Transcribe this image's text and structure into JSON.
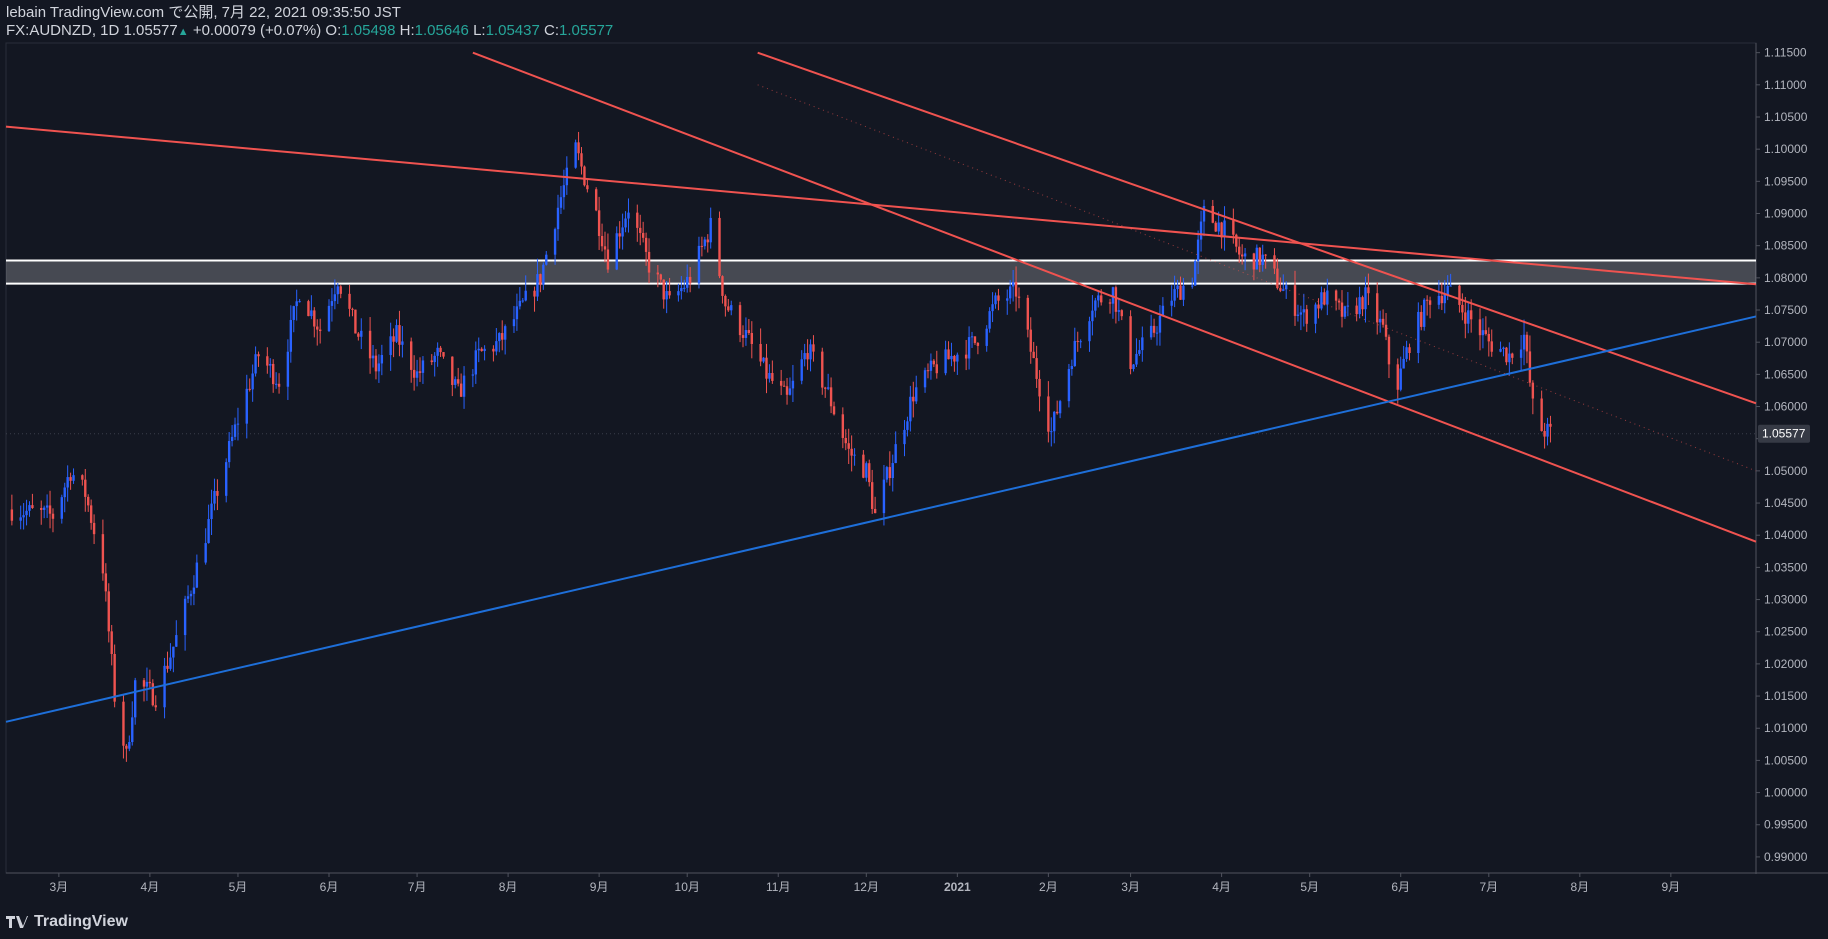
{
  "header": {
    "title": "lebain TradingView.com で公開, 7月 22, 2021 09:35:50 JST",
    "symbol": "FX:AUDNZD, 1D",
    "last": "1.05577",
    "change": "+0.00079 (+0.07%)",
    "o_label": "O:",
    "o": "1.05498",
    "h_label": "H:",
    "h": "1.05646",
    "l_label": "L:",
    "l": "1.05437",
    "c_label": "C:",
    "c": "1.05577"
  },
  "footer": {
    "brand": "TradingView"
  },
  "colors": {
    "background": "#131722",
    "up": "#2962ff",
    "down": "#ef5350",
    "trend_red": "#f05350",
    "trend_blue": "#1e6fd9",
    "zone": "#ffffff"
  },
  "chart_data": {
    "type": "candlestick",
    "symbol": "FX:AUDNZD",
    "interval": "1D",
    "ylim": [
      0.9875,
      1.1165
    ],
    "y_ticks": [
      "1.11500",
      "1.11000",
      "1.10500",
      "1.10000",
      "1.09500",
      "1.09000",
      "1.08500",
      "1.08000",
      "1.07500",
      "1.07000",
      "1.06500",
      "1.06000",
      "1.05500",
      "1.05000",
      "1.04500",
      "1.04000",
      "1.03500",
      "1.03000",
      "1.02500",
      "1.02000",
      "1.01500",
      "1.01000",
      "1.00500",
      "1.00000",
      "0.99500",
      "0.99000"
    ],
    "x_ticks": [
      {
        "label": "3月",
        "date": "2020-03-01"
      },
      {
        "label": "4月",
        "date": "2020-04-01"
      },
      {
        "label": "5月",
        "date": "2020-05-01"
      },
      {
        "label": "6月",
        "date": "2020-06-01"
      },
      {
        "label": "7月",
        "date": "2020-07-01"
      },
      {
        "label": "8月",
        "date": "2020-08-01"
      },
      {
        "label": "9月",
        "date": "2020-09-01"
      },
      {
        "label": "10月",
        "date": "2020-10-01"
      },
      {
        "label": "11月",
        "date": "2020-11-01"
      },
      {
        "label": "12月",
        "date": "2020-12-01"
      },
      {
        "label": "2021",
        "date": "2021-01-01"
      },
      {
        "label": "2月",
        "date": "2021-02-01"
      },
      {
        "label": "3月",
        "date": "2021-03-01"
      },
      {
        "label": "4月",
        "date": "2021-04-01"
      },
      {
        "label": "5月",
        "date": "2021-05-01"
      },
      {
        "label": "6月",
        "date": "2021-06-01"
      },
      {
        "label": "7月",
        "date": "2021-07-01"
      },
      {
        "label": "8月",
        "date": "2021-08-01"
      },
      {
        "label": "9月",
        "date": "2021-09-01"
      }
    ],
    "price_path": [
      [
        "2020-02-14",
        1.044
      ],
      [
        "2020-02-28",
        1.043
      ],
      [
        "2020-03-05",
        1.05
      ],
      [
        "2020-03-10",
        1.0465
      ],
      [
        "2020-03-16",
        1.035
      ],
      [
        "2020-03-20",
        1.015
      ],
      [
        "2020-03-24",
        1.0055
      ],
      [
        "2020-03-27",
        1.017
      ],
      [
        "2020-04-03",
        1.015
      ],
      [
        "2020-04-10",
        1.024
      ],
      [
        "2020-04-17",
        1.035
      ],
      [
        "2020-04-24",
        1.047
      ],
      [
        "2020-05-01",
        1.058
      ],
      [
        "2020-05-08",
        1.068
      ],
      [
        "2020-05-15",
        1.064
      ],
      [
        "2020-05-22",
        1.078
      ],
      [
        "2020-05-29",
        1.072
      ],
      [
        "2020-06-04",
        1.08
      ],
      [
        "2020-06-10",
        1.072
      ],
      [
        "2020-06-17",
        1.066
      ],
      [
        "2020-06-24",
        1.071
      ],
      [
        "2020-07-01",
        1.065
      ],
      [
        "2020-07-08",
        1.068
      ],
      [
        "2020-07-15",
        1.062
      ],
      [
        "2020-07-22",
        1.068
      ],
      [
        "2020-07-29",
        1.07
      ],
      [
        "2020-08-05",
        1.075
      ],
      [
        "2020-08-12",
        1.08
      ],
      [
        "2020-08-18",
        1.091
      ],
      [
        "2020-08-24",
        1.1
      ],
      [
        "2020-08-31",
        1.09
      ],
      [
        "2020-09-04",
        1.083
      ],
      [
        "2020-09-11",
        1.091
      ],
      [
        "2020-09-18",
        1.082
      ],
      [
        "2020-09-25",
        1.076
      ],
      [
        "2020-10-02",
        1.08
      ],
      [
        "2020-10-09",
        1.088
      ],
      [
        "2020-10-14",
        1.076
      ],
      [
        "2020-10-21",
        1.071
      ],
      [
        "2020-10-28",
        1.065
      ],
      [
        "2020-11-04",
        1.061
      ],
      [
        "2020-11-11",
        1.069
      ],
      [
        "2020-11-18",
        1.062
      ],
      [
        "2020-11-25",
        1.053
      ],
      [
        "2020-12-01",
        1.05
      ],
      [
        "2020-12-04",
        1.043
      ],
      [
        "2020-12-10",
        1.052
      ],
      [
        "2020-12-17",
        1.062
      ],
      [
        "2020-12-24",
        1.066
      ],
      [
        "2020-12-31",
        1.068
      ],
      [
        "2021-01-07",
        1.07
      ],
      [
        "2021-01-14",
        1.076
      ],
      [
        "2021-01-21",
        1.078
      ],
      [
        "2021-01-28",
        1.065
      ],
      [
        "2021-02-02",
        1.056
      ],
      [
        "2021-02-09",
        1.068
      ],
      [
        "2021-02-16",
        1.076
      ],
      [
        "2021-02-23",
        1.078
      ],
      [
        "2021-03-01",
        1.067
      ],
      [
        "2021-03-08",
        1.071
      ],
      [
        "2021-03-15",
        1.077
      ],
      [
        "2021-03-22",
        1.08
      ],
      [
        "2021-03-26",
        1.09
      ],
      [
        "2021-04-01",
        1.088
      ],
      [
        "2021-04-08",
        1.083
      ],
      [
        "2021-04-15",
        1.083
      ],
      [
        "2021-04-22",
        1.078
      ],
      [
        "2021-04-29",
        1.074
      ],
      [
        "2021-05-06",
        1.077
      ],
      [
        "2021-05-13",
        1.074
      ],
      [
        "2021-05-20",
        1.077
      ],
      [
        "2021-05-26",
        1.072
      ],
      [
        "2021-05-30",
        1.062
      ],
      [
        "2021-06-04",
        1.07
      ],
      [
        "2021-06-11",
        1.077
      ],
      [
        "2021-06-17",
        1.078
      ],
      [
        "2021-06-24",
        1.074
      ],
      [
        "2021-07-01",
        1.07
      ],
      [
        "2021-07-08",
        1.068
      ],
      [
        "2021-07-13",
        1.071
      ],
      [
        "2021-07-16",
        1.06
      ],
      [
        "2021-07-19",
        1.0565
      ],
      [
        "2021-07-22",
        1.0558
      ]
    ],
    "drawings": [
      {
        "type": "trendline",
        "color": "red",
        "from": [
          "2020-02-12",
          1.1035
        ],
        "to": [
          "2021-09-30",
          1.079
        ]
      },
      {
        "type": "trendline",
        "color": "red",
        "from": [
          "2020-07-20",
          1.115
        ],
        "to": [
          "2021-09-30",
          1.039
        ]
      },
      {
        "type": "trendline",
        "color": "red",
        "from": [
          "2020-10-25",
          1.115
        ],
        "to": [
          "2021-09-30",
          1.0605
        ]
      },
      {
        "type": "trendline",
        "color": "blue",
        "from": [
          "2020-02-12",
          1.011
        ],
        "to": [
          "2021-09-30",
          1.074
        ]
      },
      {
        "type": "zone",
        "color": "white",
        "top": 1.0827,
        "bottom": 1.0791
      },
      {
        "type": "dotted",
        "color": "red",
        "from": [
          "2020-10-25",
          1.11
        ],
        "to": [
          "2021-09-30",
          1.05
        ]
      }
    ],
    "last_price": 1.05577
  }
}
